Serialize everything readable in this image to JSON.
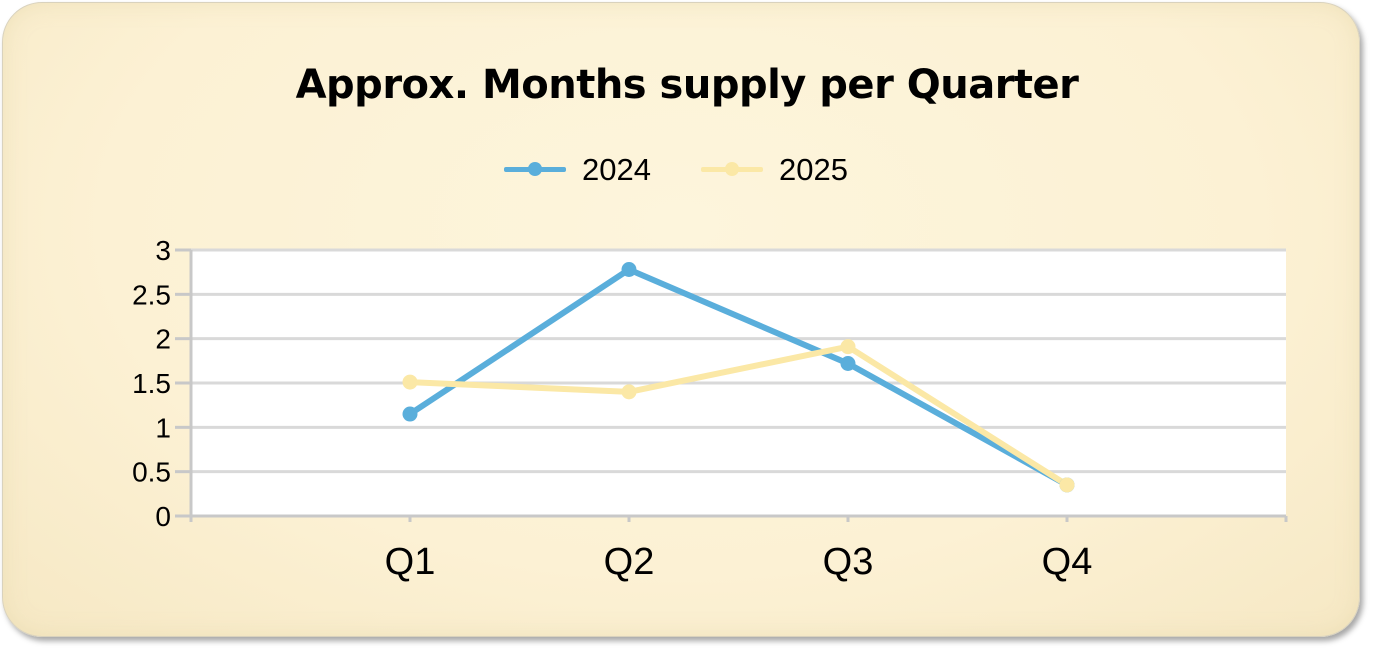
{
  "chart_data": {
    "type": "line",
    "title": "Approx. Months supply per Quarter",
    "categories": [
      "Q1",
      "Q2",
      "Q3",
      "Q4"
    ],
    "series": [
      {
        "name": "2024",
        "values": [
          1.15,
          2.78,
          1.72,
          0.35
        ],
        "color": "#5aaedb"
      },
      {
        "name": "2025",
        "values": [
          1.51,
          1.4,
          1.91,
          0.35
        ],
        "color": "#fbe8a6"
      }
    ],
    "yticks": [
      "0",
      "0.5",
      "1",
      "1.5",
      "2",
      "2.5",
      "3"
    ],
    "ylim": [
      0,
      3
    ],
    "xlabel": "",
    "ylabel": "",
    "grid": true,
    "legend": "top-center"
  },
  "colors": {
    "background": "#fcf1d4",
    "plot_area": "#ffffff",
    "gridline": "#d9d9d9",
    "axis": "#c8c8c8"
  }
}
